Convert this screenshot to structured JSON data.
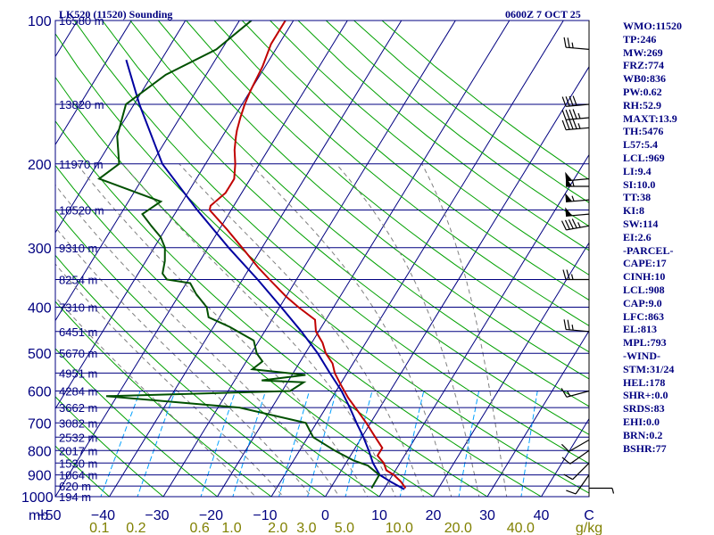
{
  "header": {
    "station": "LK520 (11520) Sounding",
    "time": "0600Z  7 OCT 25"
  },
  "indices": [
    "WMO:11520",
    "TP:246",
    "MW:269",
    "FRZ:774",
    "WB0:836",
    "PW:0.62",
    "RH:52.9",
    "MAXT:13.9",
    "TH:5476",
    "L57:5.4",
    "LCL:969",
    "LI:9.4",
    "SI:10.0",
    "TT:38",
    "KI:8",
    "SW:114",
    "EI:2.6",
    "-PARCEL-",
    "CAPE:17",
    "CINH:10",
    "LCL:908",
    "CAP:9.0",
    "LFC:863",
    "EL:813",
    "MPL:793",
    "-WIND-",
    "STM:31/24",
    "HEL:178",
    "SHR+:0.0",
    "SRDS:83",
    "EHI:0.0",
    "BRN:0.2",
    "BSHR:77"
  ],
  "colors": {
    "frame": "#000080",
    "isobar": "#000080",
    "isotherm": "#000080",
    "dry_adiabat": "#00a000",
    "moist_adiabat": "#7f7f7f",
    "mixing_ratio": "#00a0ff",
    "temperature": "#c00000",
    "dewpoint": "#005000",
    "parcel": "#0000a0",
    "barbs": "#000000",
    "axis_labels": "#000080",
    "mixing_labels": "#808000"
  },
  "chart_data": {
    "type": "line",
    "title": "LK520 (11520) Sounding",
    "chart_kind": "skew-T log-p",
    "pressure_ticks": [
      {
        "p": 100,
        "label": "100"
      },
      {
        "p": 200,
        "label": "200"
      },
      {
        "p": 300,
        "label": "300"
      },
      {
        "p": 400,
        "label": "400"
      },
      {
        "p": 500,
        "label": "500"
      },
      {
        "p": 600,
        "label": "600"
      },
      {
        "p": 700,
        "label": "700"
      },
      {
        "p": 800,
        "label": "800"
      },
      {
        "p": 900,
        "label": "900"
      },
      {
        "p": 1000,
        "label": "1000"
      }
    ],
    "height_labels": [
      {
        "p": 100,
        "label": "16580 m"
      },
      {
        "p": 150,
        "label": "13820 m"
      },
      {
        "p": 200,
        "label": "11970 m"
      },
      {
        "p": 250,
        "label": "10520 m"
      },
      {
        "p": 300,
        "label": "9310 m"
      },
      {
        "p": 350,
        "label": "8254 m"
      },
      {
        "p": 400,
        "label": "7310 m"
      },
      {
        "p": 450,
        "label": "6451 m"
      },
      {
        "p": 500,
        "label": "5670 m"
      },
      {
        "p": 550,
        "label": "4951 m"
      },
      {
        "p": 600,
        "label": "4284 m"
      },
      {
        "p": 650,
        "label": "3662 m"
      },
      {
        "p": 700,
        "label": "3082 m"
      },
      {
        "p": 750,
        "label": "2532 m"
      },
      {
        "p": 800,
        "label": "2017 m"
      },
      {
        "p": 850,
        "label": "1530 m"
      },
      {
        "p": 900,
        "label": "1064 m"
      },
      {
        "p": 950,
        "label": "620 m"
      },
      {
        "p": 1000,
        "label": "194 m"
      }
    ],
    "pressure_unit": "mb",
    "temperature_ticks": [
      -50,
      -40,
      -30,
      -20,
      -10,
      0,
      10,
      20,
      30,
      40
    ],
    "temperature_tick_labels": [
      "−50",
      "−40",
      "−30",
      "−20",
      "−10",
      "0",
      "10",
      "20",
      "30",
      "40"
    ],
    "temperature_unit": "C",
    "mixing_ratio_labels": [
      "0.1",
      "0.2",
      "0.6",
      "1.0",
      "2.0",
      "3.0",
      "5.0",
      "10.0",
      "20.0",
      "40.0"
    ],
    "mixing_ratio_unit": "g/kg",
    "temperature_profile": [
      {
        "p": 100,
        "t": -61.5
      },
      {
        "p": 112,
        "t": -61.5
      },
      {
        "p": 125,
        "t": -60.5
      },
      {
        "p": 140,
        "t": -60.0
      },
      {
        "p": 150,
        "t": -59.5
      },
      {
        "p": 160,
        "t": -58.8
      },
      {
        "p": 170,
        "t": -58.0
      },
      {
        "p": 175,
        "t": -57.5
      },
      {
        "p": 187,
        "t": -56.2
      },
      {
        "p": 200,
        "t": -54.5
      },
      {
        "p": 215,
        "t": -53.0
      },
      {
        "p": 230,
        "t": -53.0
      },
      {
        "p": 245,
        "t": -54.3
      },
      {
        "p": 250,
        "t": -54.0
      },
      {
        "p": 275,
        "t": -48.5
      },
      {
        "p": 300,
        "t": -43.7
      },
      {
        "p": 330,
        "t": -38.5
      },
      {
        "p": 350,
        "t": -35.0
      },
      {
        "p": 380,
        "t": -30.0
      },
      {
        "p": 400,
        "t": -26.5
      },
      {
        "p": 425,
        "t": -22.0
      },
      {
        "p": 450,
        "t": -20.5
      },
      {
        "p": 475,
        "t": -18.0
      },
      {
        "p": 500,
        "t": -16.2
      },
      {
        "p": 525,
        "t": -13.8
      },
      {
        "p": 550,
        "t": -12.3
      },
      {
        "p": 580,
        "t": -10.0
      },
      {
        "p": 620,
        "t": -7.0
      },
      {
        "p": 660,
        "t": -3.8
      },
      {
        "p": 700,
        "t": -0.8
      },
      {
        "p": 750,
        "t": 2.5
      },
      {
        "p": 790,
        "t": 5.0
      },
      {
        "p": 800,
        "t": 5.0
      },
      {
        "p": 820,
        "t": 5.0
      },
      {
        "p": 850,
        "t": 7.0
      },
      {
        "p": 880,
        "t": 8.3
      },
      {
        "p": 900,
        "t": 10.2
      },
      {
        "p": 930,
        "t": 12.3
      },
      {
        "p": 960,
        "t": 13.9
      }
    ],
    "dewpoint_profile": [
      {
        "p": 100,
        "t": -67.8
      },
      {
        "p": 115,
        "t": -71.0
      },
      {
        "p": 130,
        "t": -77.5
      },
      {
        "p": 150,
        "t": -81.5
      },
      {
        "p": 175,
        "t": -79.5
      },
      {
        "p": 200,
        "t": -76.0
      },
      {
        "p": 215,
        "t": -78.0
      },
      {
        "p": 240,
        "t": -64.0
      },
      {
        "p": 255,
        "t": -66.0
      },
      {
        "p": 270,
        "t": -63.0
      },
      {
        "p": 285,
        "t": -60.0
      },
      {
        "p": 300,
        "t": -58.0
      },
      {
        "p": 320,
        "t": -56.5
      },
      {
        "p": 340,
        "t": -55.5
      },
      {
        "p": 350,
        "t": -54.0
      },
      {
        "p": 356,
        "t": -49.3
      },
      {
        "p": 375,
        "t": -47.0
      },
      {
        "p": 400,
        "t": -43.5
      },
      {
        "p": 420,
        "t": -42.0
      },
      {
        "p": 440,
        "t": -37.0
      },
      {
        "p": 470,
        "t": -31.0
      },
      {
        "p": 500,
        "t": -29.0
      },
      {
        "p": 520,
        "t": -27.0
      },
      {
        "p": 540,
        "t": -28.0
      },
      {
        "p": 555,
        "t": -17.5
      },
      {
        "p": 570,
        "t": -25.0
      },
      {
        "p": 575,
        "t": -17.0
      },
      {
        "p": 600,
        "t": -18.5
      },
      {
        "p": 615,
        "t": -52.0
      },
      {
        "p": 650,
        "t": -26.0
      },
      {
        "p": 700,
        "t": -12.0
      },
      {
        "p": 750,
        "t": -9.0
      },
      {
        "p": 800,
        "t": -3.5
      },
      {
        "p": 840,
        "t": 1.2
      },
      {
        "p": 860,
        "t": 4.3
      },
      {
        "p": 900,
        "t": 7.5
      },
      {
        "p": 960,
        "t": 7.6
      }
    ],
    "parcel_profile": [
      {
        "p": 965,
        "t": 13.8
      },
      {
        "p": 930,
        "t": 10.4
      },
      {
        "p": 900,
        "t": 7.6
      },
      {
        "p": 850,
        "t": 5.0
      },
      {
        "p": 800,
        "t": 2.8
      },
      {
        "p": 750,
        "t": 0.3
      },
      {
        "p": 700,
        "t": -2.6
      },
      {
        "p": 650,
        "t": -5.6
      },
      {
        "p": 600,
        "t": -9.0
      },
      {
        "p": 550,
        "t": -13.2
      },
      {
        "p": 500,
        "t": -17.7
      },
      {
        "p": 450,
        "t": -23.2
      },
      {
        "p": 400,
        "t": -29.7
      },
      {
        "p": 350,
        "t": -37.2
      },
      {
        "p": 300,
        "t": -46.2
      },
      {
        "p": 250,
        "t": -56.3
      },
      {
        "p": 200,
        "t": -68.0
      },
      {
        "p": 150,
        "t": -79.0
      },
      {
        "p": 121,
        "t": -86.5
      }
    ],
    "wind_barbs": [
      {
        "p": 115,
        "dir": 275,
        "kt": 25
      },
      {
        "p": 150,
        "dir": 265,
        "kt": 40
      },
      {
        "p": 160,
        "dir": 265,
        "kt": 45
      },
      {
        "p": 168,
        "dir": 265,
        "kt": 45
      },
      {
        "p": 215,
        "dir": 265,
        "kt": 50
      },
      {
        "p": 223,
        "dir": 270,
        "kt": 55
      },
      {
        "p": 238,
        "dir": 265,
        "kt": 55
      },
      {
        "p": 255,
        "dir": 265,
        "kt": 50
      },
      {
        "p": 270,
        "dir": 260,
        "kt": 45
      },
      {
        "p": 350,
        "dir": 270,
        "kt": 25
      },
      {
        "p": 450,
        "dir": 275,
        "kt": 25
      },
      {
        "p": 600,
        "dir": 255,
        "kt": 15
      },
      {
        "p": 760,
        "dir": 240,
        "kt": 10
      },
      {
        "p": 800,
        "dir": 235,
        "kt": 10
      },
      {
        "p": 850,
        "dir": 225,
        "kt": 10
      },
      {
        "p": 900,
        "dir": 215,
        "kt": 10
      },
      {
        "p": 960,
        "dir": 90,
        "kt": 5
      }
    ],
    "grid": true
  }
}
